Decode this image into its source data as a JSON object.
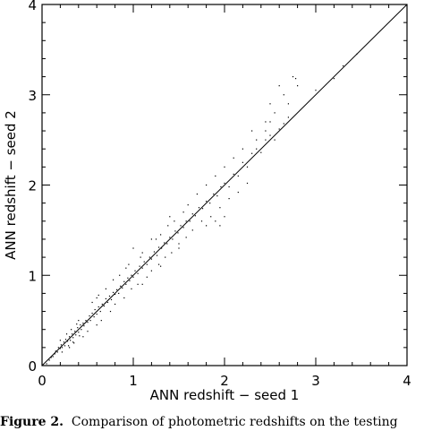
{
  "chart_data": {
    "type": "scatter",
    "title": "",
    "xlabel": "ANN redshift − seed 1",
    "ylabel": "ANN redshift − seed 2",
    "xlim": [
      0,
      4
    ],
    "ylim": [
      0,
      4
    ],
    "xticks": [
      "0",
      "1",
      "2",
      "3",
      "4"
    ],
    "yticks": [
      "0",
      "1",
      "2",
      "3",
      "4"
    ],
    "grid": false,
    "legend": "none",
    "reference_line": {
      "x": [
        0,
        4
      ],
      "y": [
        0,
        4
      ]
    },
    "points": [
      [
        0.05,
        0.02
      ],
      [
        0.08,
        0.06
      ],
      [
        0.1,
        0.09
      ],
      [
        0.12,
        0.1
      ],
      [
        0.14,
        0.13
      ],
      [
        0.15,
        0.16
      ],
      [
        0.17,
        0.15
      ],
      [
        0.18,
        0.2
      ],
      [
        0.2,
        0.19
      ],
      [
        0.21,
        0.23
      ],
      [
        0.22,
        0.2
      ],
      [
        0.24,
        0.26
      ],
      [
        0.25,
        0.22
      ],
      [
        0.26,
        0.29
      ],
      [
        0.28,
        0.27
      ],
      [
        0.3,
        0.32
      ],
      [
        0.31,
        0.28
      ],
      [
        0.33,
        0.35
      ],
      [
        0.34,
        0.31
      ],
      [
        0.36,
        0.38
      ],
      [
        0.37,
        0.34
      ],
      [
        0.39,
        0.42
      ],
      [
        0.4,
        0.37
      ],
      [
        0.42,
        0.45
      ],
      [
        0.43,
        0.4
      ],
      [
        0.45,
        0.47
      ],
      [
        0.46,
        0.44
      ],
      [
        0.48,
        0.5
      ],
      [
        0.5,
        0.48
      ],
      [
        0.52,
        0.55
      ],
      [
        0.53,
        0.5
      ],
      [
        0.55,
        0.58
      ],
      [
        0.57,
        0.54
      ],
      [
        0.58,
        0.62
      ],
      [
        0.6,
        0.57
      ],
      [
        0.62,
        0.65
      ],
      [
        0.64,
        0.6
      ],
      [
        0.66,
        0.68
      ],
      [
        0.68,
        0.66
      ],
      [
        0.7,
        0.74
      ],
      [
        0.72,
        0.7
      ],
      [
        0.74,
        0.77
      ],
      [
        0.76,
        0.73
      ],
      [
        0.78,
        0.81
      ],
      [
        0.8,
        0.79
      ],
      [
        0.82,
        0.84
      ],
      [
        0.84,
        0.8
      ],
      [
        0.86,
        0.88
      ],
      [
        0.88,
        0.86
      ],
      [
        0.9,
        0.93
      ],
      [
        0.92,
        0.9
      ],
      [
        0.94,
        0.97
      ],
      [
        0.96,
        0.94
      ],
      [
        0.98,
        1.0
      ],
      [
        1.0,
        0.98
      ],
      [
        1.02,
        1.05
      ],
      [
        1.05,
        1.02
      ],
      [
        1.07,
        1.1
      ],
      [
        1.1,
        1.08
      ],
      [
        1.12,
        1.15
      ],
      [
        1.15,
        1.12
      ],
      [
        1.18,
        1.2
      ],
      [
        1.2,
        1.18
      ],
      [
        1.23,
        1.26
      ],
      [
        1.26,
        1.22
      ],
      [
        1.28,
        1.31
      ],
      [
        1.31,
        1.3
      ],
      [
        1.34,
        1.36
      ],
      [
        1.37,
        1.35
      ],
      [
        1.4,
        1.42
      ],
      [
        1.43,
        1.4
      ],
      [
        1.46,
        1.49
      ],
      [
        1.49,
        1.47
      ],
      [
        1.52,
        1.55
      ],
      [
        1.55,
        1.53
      ],
      [
        1.58,
        1.6
      ],
      [
        1.62,
        1.6
      ],
      [
        1.65,
        1.68
      ],
      [
        1.68,
        1.66
      ],
      [
        1.72,
        1.75
      ],
      [
        1.76,
        1.74
      ],
      [
        1.8,
        1.82
      ],
      [
        1.84,
        1.8
      ],
      [
        1.88,
        1.9
      ],
      [
        1.92,
        1.88
      ],
      [
        1.96,
        1.98
      ],
      [
        2.0,
        2.02
      ],
      [
        2.05,
        1.98
      ],
      [
        2.1,
        2.12
      ],
      [
        2.15,
        2.1
      ],
      [
        2.2,
        2.25
      ],
      [
        2.25,
        2.2
      ],
      [
        2.3,
        2.35
      ],
      [
        2.35,
        2.4
      ],
      [
        2.4,
        2.36
      ],
      [
        2.45,
        2.5
      ],
      [
        2.5,
        2.55
      ],
      [
        2.55,
        2.5
      ],
      [
        2.6,
        2.62
      ],
      [
        2.65,
        2.68
      ],
      [
        2.7,
        2.75
      ],
      [
        2.75,
        3.2
      ],
      [
        2.78,
        3.18
      ],
      [
        2.8,
        3.1
      ],
      [
        2.6,
        3.1
      ],
      [
        2.65,
        3.0
      ],
      [
        2.7,
        2.9
      ],
      [
        2.5,
        2.9
      ],
      [
        2.45,
        2.7
      ],
      [
        2.55,
        2.8
      ],
      [
        3.0,
        3.05
      ],
      [
        3.2,
        3.18
      ],
      [
        3.3,
        3.32
      ],
      [
        3.45,
        3.45
      ],
      [
        0.3,
        0.2
      ],
      [
        0.35,
        0.25
      ],
      [
        0.5,
        0.38
      ],
      [
        0.55,
        0.7
      ],
      [
        0.6,
        0.75
      ],
      [
        0.65,
        0.5
      ],
      [
        0.7,
        0.85
      ],
      [
        0.75,
        0.6
      ],
      [
        0.85,
        1.0
      ],
      [
        0.9,
        0.75
      ],
      [
        0.95,
        1.12
      ],
      [
        1.05,
        0.9
      ],
      [
        1.1,
        1.25
      ],
      [
        1.2,
        1.05
      ],
      [
        1.3,
        1.45
      ],
      [
        1.35,
        1.2
      ],
      [
        1.45,
        1.6
      ],
      [
        1.5,
        1.35
      ],
      [
        1.6,
        1.78
      ],
      [
        1.65,
        1.5
      ],
      [
        1.7,
        1.9
      ],
      [
        1.75,
        1.6
      ],
      [
        1.8,
        2.0
      ],
      [
        1.85,
        1.65
      ],
      [
        1.9,
        2.1
      ],
      [
        1.95,
        1.75
      ],
      [
        2.0,
        2.2
      ],
      [
        2.05,
        1.85
      ],
      [
        2.1,
        2.3
      ],
      [
        2.15,
        1.92
      ],
      [
        2.2,
        2.4
      ],
      [
        2.25,
        2.02
      ],
      [
        1.8,
        1.55
      ],
      [
        1.9,
        1.6
      ],
      [
        2.0,
        1.65
      ],
      [
        1.95,
        1.55
      ],
      [
        2.3,
        2.6
      ],
      [
        2.35,
        2.5
      ],
      [
        2.45,
        2.6
      ],
      [
        2.5,
        2.7
      ],
      [
        1.0,
        1.3
      ],
      [
        1.1,
        0.9
      ],
      [
        1.2,
        1.4
      ],
      [
        1.3,
        1.1
      ],
      [
        1.4,
        1.65
      ],
      [
        1.5,
        1.3
      ],
      [
        0.4,
        0.5
      ],
      [
        0.45,
        0.32
      ],
      [
        0.6,
        0.45
      ],
      [
        0.62,
        0.78
      ],
      [
        0.78,
        0.95
      ],
      [
        0.8,
        0.68
      ],
      [
        0.92,
        1.08
      ],
      [
        0.98,
        0.85
      ],
      [
        1.08,
        1.2
      ],
      [
        1.15,
        0.98
      ],
      [
        1.25,
        1.4
      ],
      [
        1.28,
        1.12
      ],
      [
        1.38,
        1.55
      ],
      [
        1.42,
        1.25
      ],
      [
        1.55,
        1.7
      ],
      [
        1.58,
        1.42
      ],
      [
        0.2,
        0.28
      ],
      [
        0.22,
        0.15
      ],
      [
        0.27,
        0.35
      ],
      [
        0.29,
        0.22
      ],
      [
        0.32,
        0.4
      ],
      [
        0.34,
        0.26
      ],
      [
        0.38,
        0.46
      ],
      [
        0.41,
        0.33
      ]
    ]
  },
  "caption": {
    "label": "Figure 2.",
    "text": "Comparison of photometric redshifts on the testing"
  }
}
